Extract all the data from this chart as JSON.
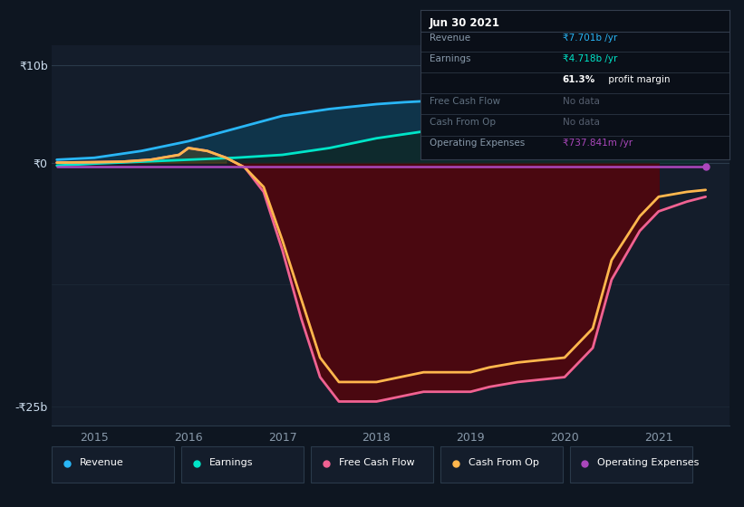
{
  "bg_color": "#0e1621",
  "plot_bg_color": "#0e1621",
  "inner_bg_color": "#141d2b",
  "x_ticks": [
    2015,
    2016,
    2017,
    2018,
    2019,
    2020,
    2021
  ],
  "ylim_low": -27,
  "ylim_high": 12,
  "y_ticks_labels": [
    "₹10b",
    "₹0",
    "-₹25b"
  ],
  "y_ticks_values": [
    10,
    0,
    -25
  ],
  "revenue_color": "#29b6f6",
  "earnings_color": "#00e5c8",
  "fcf_color": "#f06292",
  "cashfromop_color": "#ffb74d",
  "opex_color": "#ab47bc",
  "table_bg": "#0a0f18",
  "table_border": "#333d4d",
  "legend_bg": "#141d2b",
  "legend_border": "#2a3a4a",
  "revenue": {
    "x": [
      2014.6,
      2015.0,
      2015.5,
      2016.0,
      2016.5,
      2017.0,
      2017.5,
      2018.0,
      2018.3,
      2018.5,
      2018.8,
      2019.0,
      2019.3,
      2019.5,
      2019.8,
      2020.0,
      2020.5,
      2021.0,
      2021.5
    ],
    "y": [
      0.3,
      0.5,
      1.2,
      2.2,
      3.5,
      4.8,
      5.5,
      6.0,
      6.2,
      6.3,
      6.4,
      6.5,
      6.6,
      6.7,
      7.0,
      7.2,
      7.8,
      8.5,
      9.2
    ]
  },
  "earnings": {
    "x": [
      2014.6,
      2015.0,
      2015.5,
      2016.0,
      2016.5,
      2017.0,
      2017.5,
      2018.0,
      2018.5,
      2019.0,
      2019.3,
      2019.5,
      2019.8,
      2020.0,
      2020.5,
      2021.0,
      2021.5
    ],
    "y": [
      -0.3,
      -0.1,
      0.1,
      0.3,
      0.5,
      0.8,
      1.5,
      2.5,
      3.2,
      3.8,
      3.9,
      4.0,
      4.1,
      4.3,
      4.8,
      5.3,
      5.7
    ]
  },
  "fcf": {
    "x": [
      2014.6,
      2015.0,
      2015.3,
      2015.6,
      2015.9,
      2016.0,
      2016.2,
      2016.4,
      2016.6,
      2016.8,
      2017.0,
      2017.2,
      2017.4,
      2017.6,
      2018.0,
      2018.5,
      2019.0,
      2019.2,
      2019.5,
      2020.0,
      2020.3,
      2020.5,
      2020.8,
      2021.0,
      2021.3,
      2021.5
    ],
    "y": [
      0.0,
      0.05,
      0.1,
      0.3,
      0.8,
      1.5,
      1.2,
      0.5,
      -0.5,
      -3.0,
      -9.0,
      -16.0,
      -22.0,
      -24.5,
      -24.5,
      -23.5,
      -23.5,
      -23.0,
      -22.5,
      -22.0,
      -19.0,
      -12.0,
      -7.0,
      -5.0,
      -4.0,
      -3.5
    ]
  },
  "cashfromop": {
    "x": [
      2014.6,
      2015.0,
      2015.3,
      2015.6,
      2015.9,
      2016.0,
      2016.2,
      2016.4,
      2016.6,
      2016.8,
      2017.0,
      2017.2,
      2017.4,
      2017.6,
      2018.0,
      2018.5,
      2019.0,
      2019.2,
      2019.5,
      2020.0,
      2020.3,
      2020.5,
      2020.8,
      2021.0,
      2021.3,
      2021.5
    ],
    "y": [
      0.0,
      0.05,
      0.1,
      0.3,
      0.8,
      1.5,
      1.2,
      0.5,
      -0.5,
      -2.5,
      -8.0,
      -14.0,
      -20.0,
      -22.5,
      -22.5,
      -21.5,
      -21.5,
      -21.0,
      -20.5,
      -20.0,
      -17.0,
      -10.0,
      -5.5,
      -3.5,
      -3.0,
      -2.8
    ]
  },
  "opex": {
    "x": [
      2014.6,
      2015.0,
      2016.0,
      2017.0,
      2018.0,
      2019.0,
      2020.0,
      2021.0,
      2021.5
    ],
    "y": [
      -0.45,
      -0.45,
      -0.45,
      -0.45,
      -0.45,
      -0.45,
      -0.45,
      -0.45,
      -0.45
    ]
  },
  "fill_cutoff_x": 2021.0,
  "info_box": {
    "title": "Jun 30 2021",
    "rows": [
      {
        "label": "Revenue",
        "value": "₹7.701b /yr",
        "value_color": "#29b6f6",
        "dim": false,
        "bold_prefix": null
      },
      {
        "label": "Earnings",
        "value": "₹4.718b /yr",
        "value_color": "#00e5c8",
        "dim": false,
        "bold_prefix": null
      },
      {
        "label": "",
        "value": "61.3% profit margin",
        "value_color": "#ffffff",
        "dim": false,
        "bold_prefix": "61.3%"
      },
      {
        "label": "Free Cash Flow",
        "value": "No data",
        "value_color": "#555e6e",
        "dim": true,
        "bold_prefix": null
      },
      {
        "label": "Cash From Op",
        "value": "No data",
        "value_color": "#555e6e",
        "dim": true,
        "bold_prefix": null
      },
      {
        "label": "Operating Expenses",
        "value": "₹737.841m /yr",
        "value_color": "#ab47bc",
        "dim": false,
        "bold_prefix": null
      }
    ]
  },
  "legend_items": [
    {
      "label": "Revenue",
      "color": "#29b6f6"
    },
    {
      "label": "Earnings",
      "color": "#00e5c8"
    },
    {
      "label": "Free Cash Flow",
      "color": "#f06292"
    },
    {
      "label": "Cash From Op",
      "color": "#ffb74d"
    },
    {
      "label": "Operating Expenses",
      "color": "#ab47bc"
    }
  ]
}
